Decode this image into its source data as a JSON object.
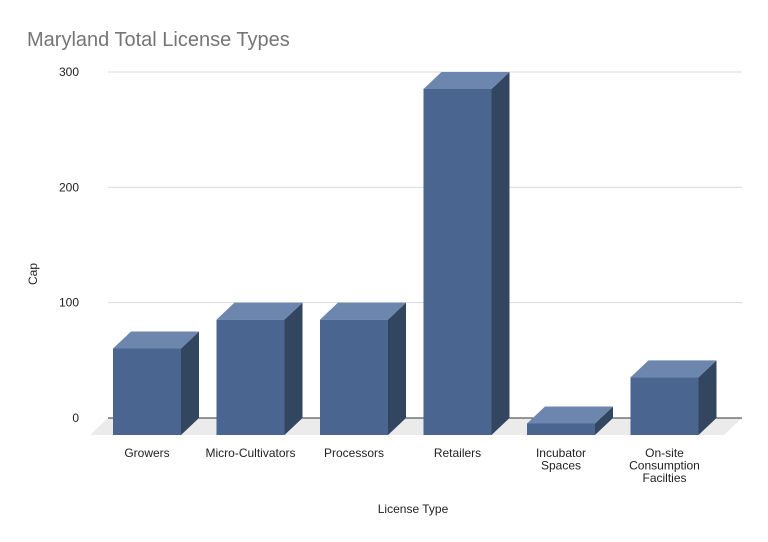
{
  "chart_data": {
    "type": "bar",
    "title": "Maryland Total License Types",
    "xlabel": "License Type",
    "ylabel": "Cap",
    "ylim": [
      0,
      300
    ],
    "yticks": [
      0,
      100,
      200,
      300
    ],
    "grid": true,
    "three_d": true,
    "categories": [
      [
        "Growers"
      ],
      [
        "Micro-Cultivators"
      ],
      [
        "Processors"
      ],
      [
        "Retailers"
      ],
      [
        "Incubator",
        "Spaces"
      ],
      [
        "On-site",
        "Consumption",
        "Facilties"
      ]
    ],
    "values": [
      75,
      100,
      100,
      300,
      10,
      50
    ],
    "colors": {
      "bar_front": "#4a6590",
      "bar_top": "#6c86ae",
      "bar_side": "#33465f",
      "floor": "#ebebeb",
      "grid": "#d9d9d9"
    }
  }
}
